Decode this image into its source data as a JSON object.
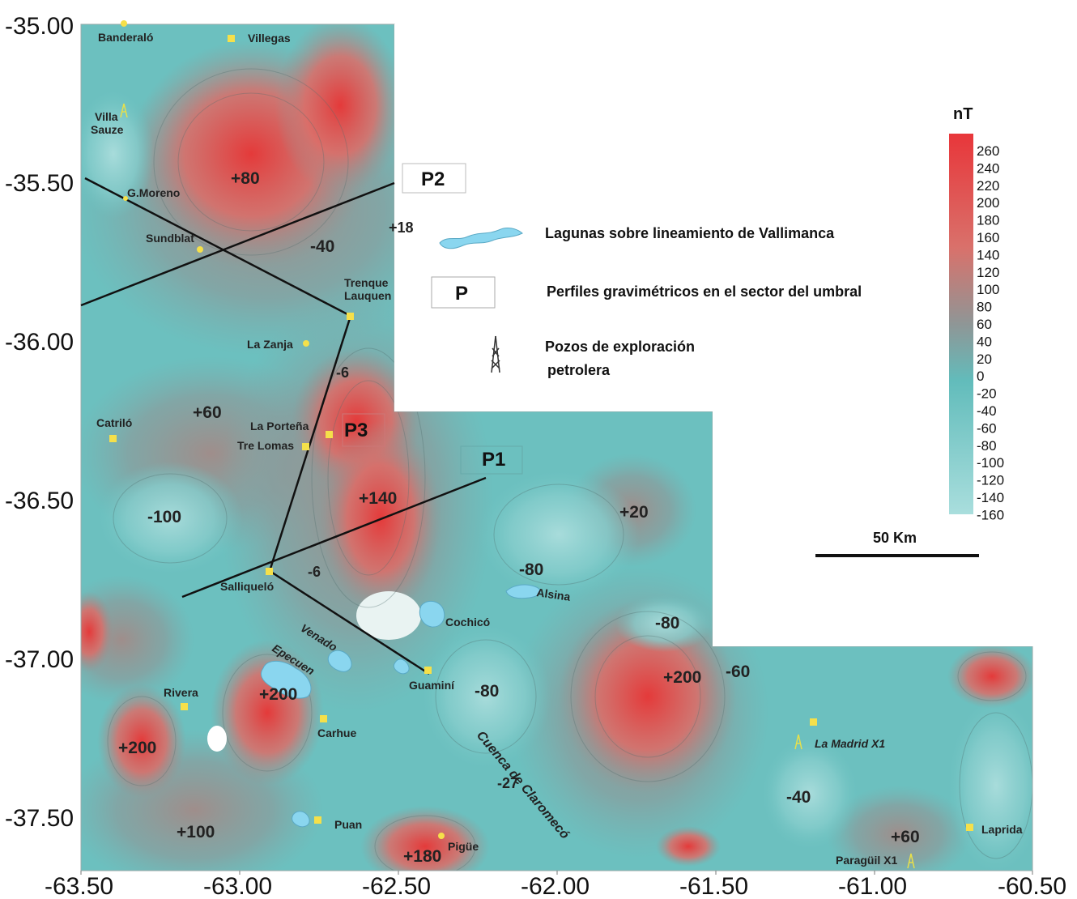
{
  "axes": {
    "x_ticks": [
      "-63.50",
      "-63.00",
      "-62.50",
      "-62.00",
      "-61.50",
      "-61.00",
      "-60.50"
    ],
    "y_ticks": [
      "-35.00",
      "-35.50",
      "-36.00",
      "-36.50",
      "-37.00",
      "-37.50"
    ]
  },
  "places": [
    {
      "name": "Banderaló",
      "lon": -63.36,
      "lat": -35.0
    },
    {
      "name": "Villegas",
      "lon": -63.02,
      "lat": -35.05
    },
    {
      "name": "Villa Sauze",
      "lon": -63.36,
      "lat": -35.3
    },
    {
      "name": "G.Moreno",
      "lon": -63.36,
      "lat": -35.56
    },
    {
      "name": "Sundblat",
      "lon": -63.13,
      "lat": -35.71
    },
    {
      "name": "Trenque Lauquen",
      "lon": -62.65,
      "lat": -35.92
    },
    {
      "name": "La Zanja",
      "lon": -62.79,
      "lat": -36.01
    },
    {
      "name": "Catriló",
      "lon": -63.4,
      "lat": -36.31
    },
    {
      "name": "La Porteña",
      "lon": -62.72,
      "lat": -36.29
    },
    {
      "name": "Tre Lomas",
      "lon": -62.79,
      "lat": -36.34
    },
    {
      "name": "Salliqueló",
      "lon": -62.91,
      "lat": -36.73
    },
    {
      "name": "Guaminí",
      "lon": -62.38,
      "lat": -37.04
    },
    {
      "name": "Rivera",
      "lon": -63.24,
      "lat": -37.16
    },
    {
      "name": "Carhue",
      "lon": -62.76,
      "lat": -37.19
    },
    {
      "name": "Puan",
      "lon": -62.77,
      "lat": -37.51
    },
    {
      "name": "Pigüe",
      "lon": -62.4,
      "lat": -37.6
    },
    {
      "name": "Laprida",
      "lon": -60.8,
      "lat": -37.54
    },
    {
      "name": "La Madrid X1",
      "lon": -61.26,
      "lat": -37.27
    },
    {
      "name": "Paragüil X1",
      "lon": -60.91,
      "lat": -37.6
    },
    {
      "name": "Cochicó",
      "lon": -62.34,
      "lat": -36.89
    },
    {
      "name": "Alsina",
      "lon": -62.0,
      "lat": -36.8
    },
    {
      "name": "Venado",
      "lon": -62.7,
      "lat": -36.92
    },
    {
      "name": "Epecuen",
      "lon": -62.86,
      "lat": -37.0
    },
    {
      "name": "Cuenca de Claromecó",
      "lon": -62.15,
      "lat": -37.35
    }
  ],
  "anomaly_labels": [
    "+80",
    "-40",
    "+18",
    "-6",
    "+60",
    "+140",
    "-100",
    "+20",
    "-6",
    "-80",
    "-80",
    "+200",
    "-60",
    "+200",
    "-80",
    "+200",
    "-27",
    "-40",
    "+100",
    "+180",
    "+60"
  ],
  "profiles": [
    {
      "name": "P2"
    },
    {
      "name": "P3"
    },
    {
      "name": "P1"
    }
  ],
  "legend": {
    "lagunas": "Lagunas sobre lineamiento de Vallimanca",
    "perfil_symbol": "P",
    "perfiles": "Perfiles gravimétricos en el sector del umbral",
    "pozos_line1": "Pozos de exploración",
    "pozos_line2": "petrolera"
  },
  "colorbar": {
    "title": "nT",
    "labels": [
      "260",
      "240",
      "220",
      "200",
      "180",
      "160",
      "140",
      "120",
      "100",
      "80",
      "60",
      "40",
      "20",
      "0",
      "-20",
      "-40",
      "-60",
      "-80",
      "-100",
      "-120",
      "-140",
      "-160"
    ]
  },
  "scale_bar": {
    "label": "50 Km"
  },
  "colors": {
    "high": "#e8504f",
    "mid": "#8f9a9b",
    "low": "#5cbfbe",
    "lowest": "#9fd7d6",
    "lake": "#8ad6ef",
    "town": "#f5e04a"
  }
}
